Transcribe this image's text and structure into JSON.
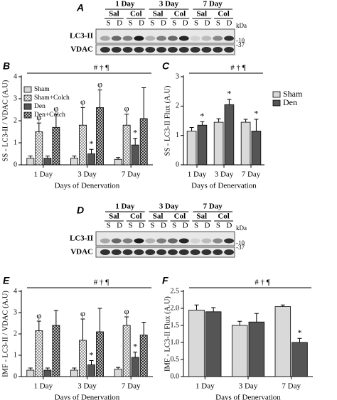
{
  "chart_data": [
    {
      "type": "bar",
      "panel": "B",
      "header": "# † ¶",
      "ylabel": "SS - LC3-II / VDAC (A.U)",
      "xlabel": "Days of Denervation",
      "categories": [
        "1 Day",
        "3 Day",
        "7 Day"
      ],
      "ylim": [
        0,
        4
      ],
      "yticks": [
        0,
        1,
        2,
        3,
        4
      ],
      "legend": "upper left",
      "series": [
        {
          "name": "Sham",
          "color": "#d9d9d9",
          "pattern": "solid",
          "values": [
            0.3,
            0.3,
            0.25
          ],
          "errors": [
            0.1,
            0.1,
            0.08
          ]
        },
        {
          "name": "Sham+Colch",
          "color": "#d9d9d9",
          "pattern": "checker",
          "values": [
            1.5,
            1.8,
            1.8
          ],
          "errors": [
            0.4,
            0.8,
            0.5
          ],
          "markers": [
            "φ",
            "φ",
            "φ"
          ]
        },
        {
          "name": "Den",
          "color": "#555555",
          "pattern": "solid",
          "values": [
            0.3,
            0.5,
            0.9
          ],
          "errors": [
            0.1,
            0.2,
            0.3
          ],
          "markers": [
            null,
            "*",
            "*"
          ]
        },
        {
          "name": "Den+Colch",
          "color": "#555555",
          "pattern": "checker",
          "values": [
            1.7,
            2.6,
            2.1
          ],
          "errors": [
            0.6,
            0.8,
            1.4
          ],
          "markers": [
            "φ",
            "φ",
            null
          ]
        }
      ]
    },
    {
      "type": "bar",
      "panel": "C",
      "header": "# † ¶",
      "ylabel": "SS - LC3-II Flux (A.U)",
      "xlabel": "Days of Denervation",
      "categories": [
        "1 Day",
        "3 Day",
        "7 Day"
      ],
      "ylim": [
        0,
        3
      ],
      "yticks": [
        0,
        1,
        2,
        3
      ],
      "legend": "right",
      "series": [
        {
          "name": "Sham",
          "color": "#d9d9d9",
          "pattern": "solid",
          "values": [
            1.15,
            1.45,
            1.45
          ],
          "errors": [
            0.12,
            0.12,
            0.1
          ]
        },
        {
          "name": "Den",
          "color": "#555555",
          "pattern": "solid",
          "values": [
            1.35,
            2.05,
            1.15
          ],
          "errors": [
            0.12,
            0.18,
            0.4
          ],
          "markers": [
            "*",
            "*",
            "*"
          ]
        }
      ]
    },
    {
      "type": "bar",
      "panel": "E",
      "header": "# † ¶",
      "ylabel": "IMF - LC3-II / VDAC (A.U)",
      "xlabel": "Days of Denervation",
      "categories": [
        "1 Day",
        "3 Day",
        "7 Day"
      ],
      "ylim": [
        0,
        4
      ],
      "yticks": [
        0,
        1,
        2,
        3,
        4
      ],
      "series": [
        {
          "name": "Sham",
          "color": "#d9d9d9",
          "pattern": "solid",
          "values": [
            0.3,
            0.3,
            0.35
          ],
          "errors": [
            0.1,
            0.1,
            0.08
          ]
        },
        {
          "name": "Sham+Colch",
          "color": "#d9d9d9",
          "pattern": "checker",
          "values": [
            2.15,
            1.7,
            2.4
          ],
          "errors": [
            0.45,
            1.0,
            0.4
          ],
          "markers": [
            "φ",
            "φ",
            "φ"
          ]
        },
        {
          "name": "Den",
          "color": "#555555",
          "pattern": "solid",
          "values": [
            0.3,
            0.55,
            0.9
          ],
          "errors": [
            0.1,
            0.2,
            0.25
          ],
          "markers": [
            null,
            "*",
            "*"
          ]
        },
        {
          "name": "Den+Colch",
          "color": "#555555",
          "pattern": "checker",
          "values": [
            2.4,
            2.1,
            1.95
          ],
          "errors": [
            0.7,
            1.1,
            0.6
          ]
        }
      ]
    },
    {
      "type": "bar",
      "panel": "F",
      "header": "# † ¶",
      "ylabel": "IMF - LC3-II Flux (A.U)",
      "xlabel": "Days of Denervation",
      "categories": [
        "1 Day",
        "3 Day",
        "7 Day"
      ],
      "ylim": [
        0,
        2.5
      ],
      "yticks": [
        {
          "value": 0,
          "label": "0.0"
        },
        0.5,
        {
          "value": 1,
          "label": "1.0"
        },
        1.5,
        {
          "value": 2,
          "label": "2.0"
        },
        2.5
      ],
      "series": [
        {
          "name": "Sham",
          "color": "#d9d9d9",
          "pattern": "solid",
          "values": [
            1.95,
            1.5,
            2.05
          ],
          "errors": [
            0.15,
            0.12,
            0.05
          ]
        },
        {
          "name": "Den",
          "color": "#555555",
          "pattern": "solid",
          "values": [
            1.9,
            1.6,
            1.0
          ],
          "errors": [
            0.12,
            0.25,
            0.12
          ],
          "markers": [
            null,
            null,
            "*"
          ]
        }
      ]
    }
  ],
  "blots": [
    {
      "panel": "A",
      "days": [
        "1 Day",
        "3 Day",
        "7 Day"
      ],
      "groups": [
        "Sal",
        "Col"
      ],
      "lanes": [
        "S",
        "D"
      ],
      "unit": "kDa",
      "rows": [
        {
          "label": "LC3-II",
          "marker": "-10"
        },
        {
          "label": "VDAC",
          "marker": "-37"
        }
      ]
    },
    {
      "panel": "D",
      "days": [
        "1 Day",
        "3 Day",
        "7 Day"
      ],
      "groups": [
        "Sal",
        "Col"
      ],
      "lanes": [
        "S",
        "D"
      ],
      "unit": "kDa",
      "rows": [
        {
          "label": "LC3-II",
          "marker": "-10"
        },
        {
          "label": "VDAC",
          "marker": "-37"
        }
      ]
    }
  ]
}
